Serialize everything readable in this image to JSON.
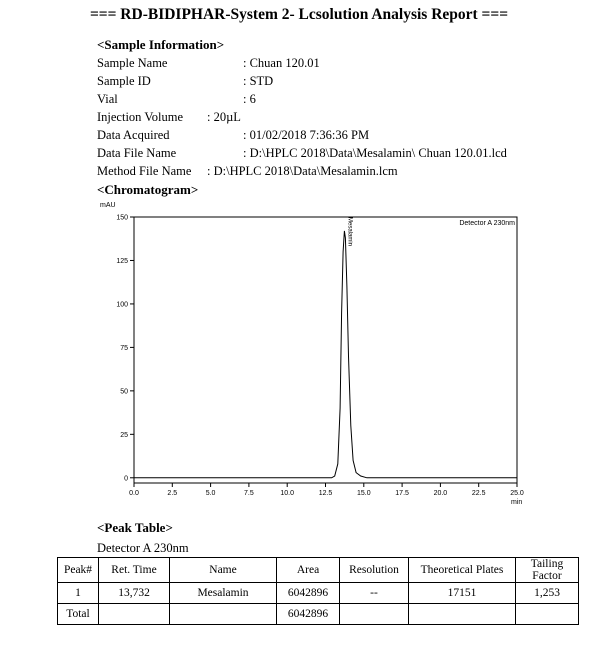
{
  "report_title": "=== RD-BIDIPHAR-System 2- Lcsolution Analysis Report ===",
  "sample_info": {
    "heading": "<Sample Information>",
    "rows": [
      {
        "label": "Sample Name",
        "value": ": Chuan 120.01"
      },
      {
        "label": "Sample ID",
        "value": ": STD"
      },
      {
        "label": "Vial",
        "value": ": 6"
      },
      {
        "label": "Injection Volume",
        "value": ": 20µL"
      },
      {
        "label": "Data Acquired",
        "value": ": 01/02/2018 7:36:36 PM"
      },
      {
        "label": "Data File Name",
        "value": ": D:\\HPLC 2018\\Data\\Mesalamin\\ Chuan 120.01.lcd"
      },
      {
        "label": "Method File Name",
        "value": ": D:\\HPLC 2018\\Data\\Mesalamin.lcm"
      }
    ]
  },
  "chromatogram_heading": "<Chromatogram>",
  "chart_data": {
    "type": "line",
    "ylabel": "mAU",
    "xlabel": "min",
    "detector_label": "Detector A 230nm",
    "peak_label": "Mesalamin",
    "xlim": [
      0,
      25
    ],
    "ylim": [
      -3,
      150
    ],
    "x_ticks": [
      0.0,
      2.5,
      5.0,
      7.5,
      10.0,
      12.5,
      15.0,
      17.5,
      20.0,
      22.5,
      25.0
    ],
    "x_tick_labels": [
      "0.0",
      "2.5",
      "5.0",
      "7.5",
      "10.0",
      "12.5",
      "15.0",
      "17.5",
      "20.0",
      "22.5",
      "25.0"
    ],
    "y_ticks": [
      0,
      25,
      50,
      75,
      100,
      125,
      150
    ],
    "y_tick_labels": [
      "0",
      "25",
      "50",
      "75",
      "100",
      "125",
      "150"
    ],
    "series": [
      {
        "x": [
          0,
          12.9,
          13.1,
          13.3,
          13.45,
          13.55,
          13.65,
          13.732,
          13.8,
          13.9,
          14.0,
          14.15,
          14.3,
          14.5,
          14.8,
          15.2,
          25
        ],
        "y": [
          0,
          0,
          1,
          8,
          40,
          95,
          130,
          142,
          138,
          110,
          70,
          30,
          10,
          3,
          1,
          0,
          0
        ]
      }
    ]
  },
  "peak_table": {
    "heading": "<Peak Table>",
    "detector": "Detector A 230nm",
    "headers": [
      "Peak#",
      "Ret. Time",
      "Name",
      "Area",
      "Resolution",
      "Theoretical Plates",
      "Tailing Factor"
    ],
    "rows": [
      [
        "1",
        "13,732",
        "Mesalamin",
        "6042896",
        "--",
        "17151",
        "1,253"
      ],
      [
        "Total",
        "",
        "",
        "6042896",
        "",
        "",
        ""
      ]
    ]
  }
}
